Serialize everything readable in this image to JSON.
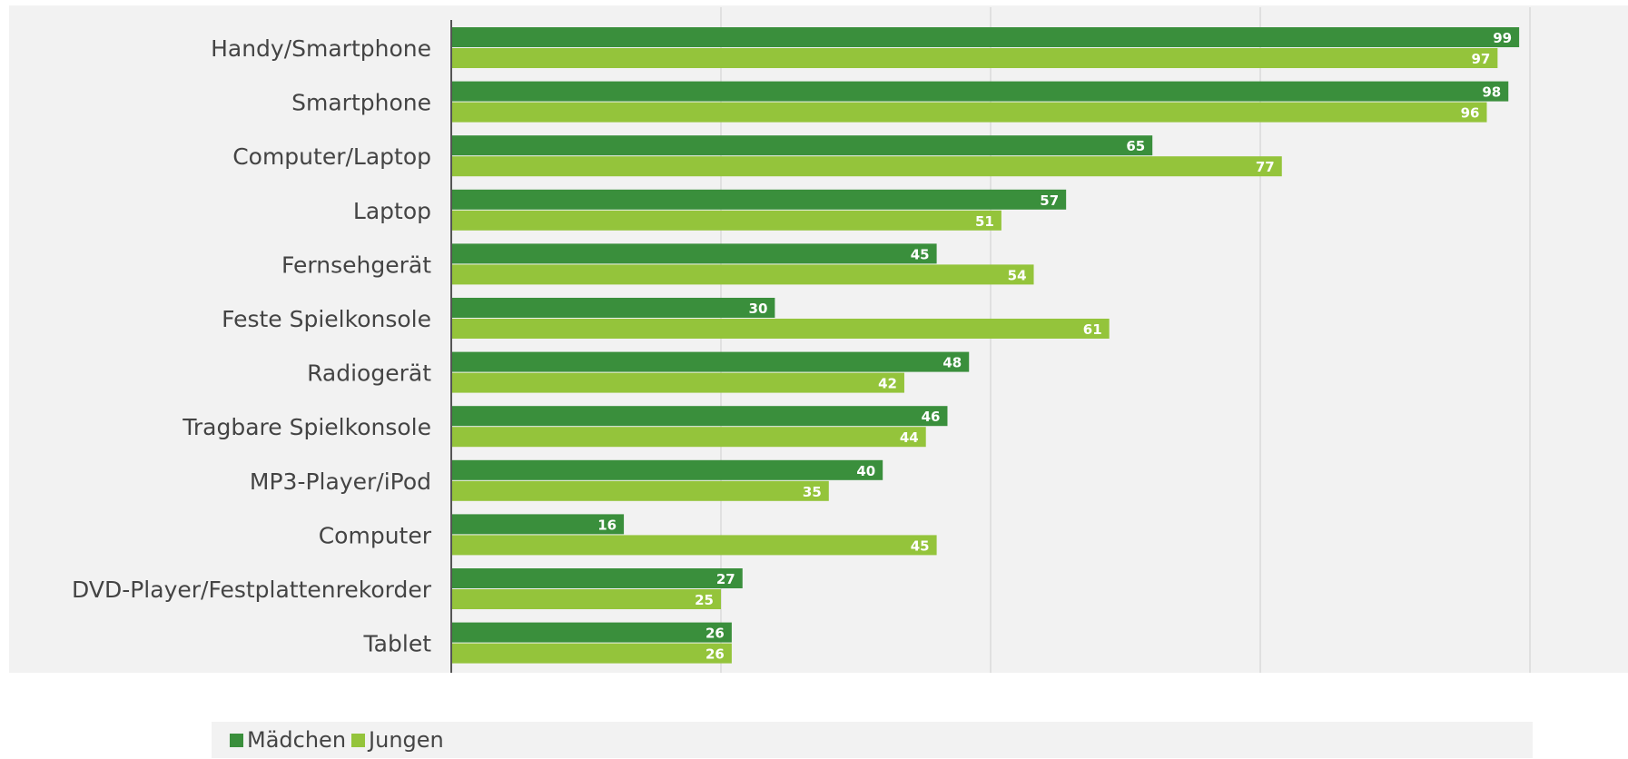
{
  "chart_data": {
    "type": "bar",
    "orientation": "horizontal",
    "categories": [
      "Handy/Smartphone",
      "Smartphone",
      "Computer/Laptop",
      "Laptop",
      "Fernsehgerät",
      "Feste Spielkonsole",
      "Radiogerät",
      "Tragbare Spielkonsole",
      "MP3-Player/iPod",
      "Computer",
      "DVD-Player/Festplattenrekorder",
      "Tablet"
    ],
    "series": [
      {
        "name": "Mädchen",
        "color": "#3a8f3c",
        "values": [
          99,
          98,
          65,
          57,
          45,
          30,
          48,
          46,
          40,
          16,
          27,
          26
        ]
      },
      {
        "name": "Jungen",
        "color": "#94c43b",
        "values": [
          97,
          96,
          77,
          51,
          54,
          61,
          42,
          44,
          35,
          45,
          25,
          26
        ]
      }
    ],
    "xlim": [
      0,
      100
    ],
    "gridlines": [
      25,
      50,
      75,
      100
    ],
    "grid": true,
    "legend": "bottom",
    "title": "",
    "xlabel": "",
    "ylabel": ""
  }
}
